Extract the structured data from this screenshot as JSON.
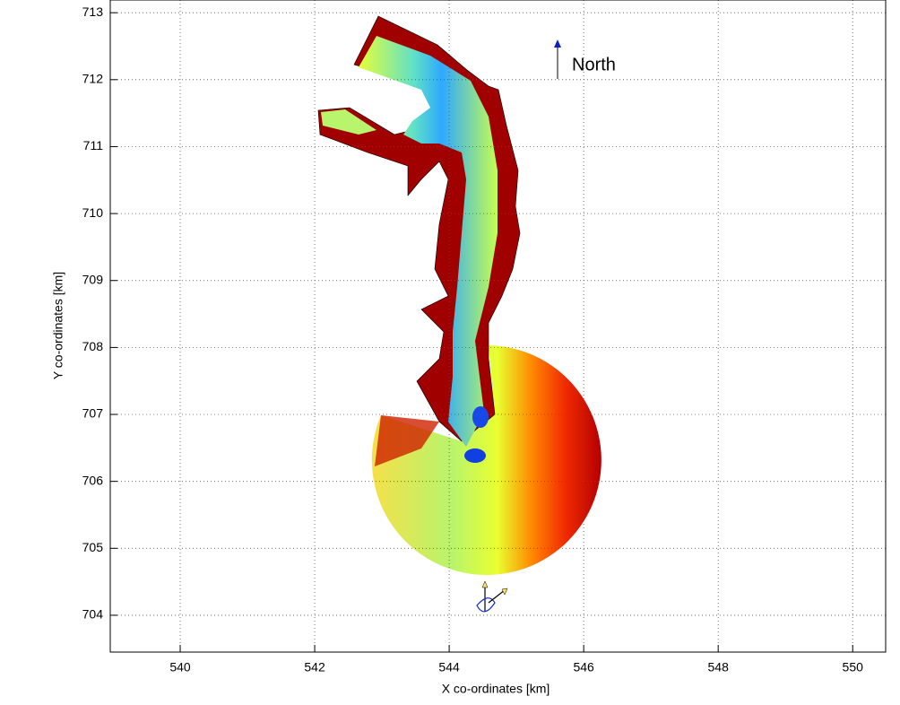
{
  "chart_data": {
    "type": "map",
    "xlabel": "X co-ordinates [km]",
    "ylabel": "Y co-ordinates [km]",
    "annotation": "North",
    "xlim": [
      538.96,
      550.49
    ],
    "ylim": [
      703.45,
      713.19
    ],
    "xticks": [
      540,
      542,
      544,
      546,
      548,
      550
    ],
    "yticks": [
      704,
      705,
      706,
      707,
      708,
      709,
      710,
      711,
      712,
      713
    ],
    "grid": true
  }
}
